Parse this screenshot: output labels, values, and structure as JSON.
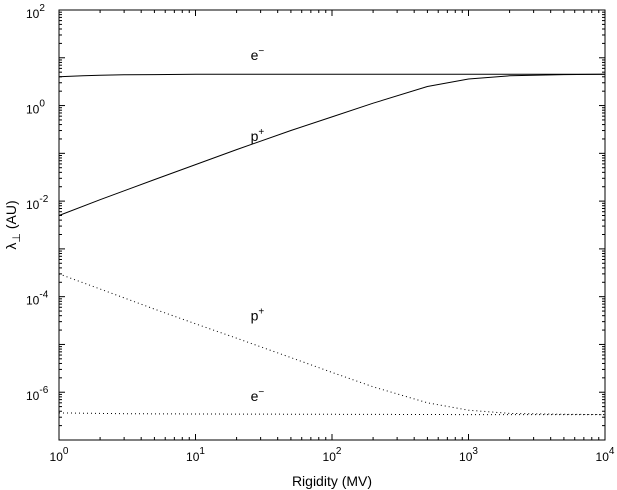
{
  "chart_data": {
    "type": "line",
    "title": "",
    "xlabel": "Rigidity (MV)",
    "ylabel_main": "λ",
    "ylabel_sub": "⊥",
    "ylabel_rest": " (AU)",
    "xscale": "log",
    "yscale": "log",
    "xlim": [
      1,
      10000
    ],
    "ylim": [
      1e-07,
      100
    ],
    "grid": false,
    "legend": "none",
    "x_ticks": [
      {
        "value": 1,
        "base": "10",
        "exp": "0"
      },
      {
        "value": 10,
        "base": "10",
        "exp": "1"
      },
      {
        "value": 100,
        "base": "10",
        "exp": "2"
      },
      {
        "value": 1000,
        "base": "10",
        "exp": "3"
      },
      {
        "value": 10000,
        "base": "10",
        "exp": "4"
      }
    ],
    "y_ticks": [
      {
        "value": 1e-06,
        "base": "10",
        "exp": "-6"
      },
      {
        "value": 0.0001,
        "base": "10",
        "exp": "-4"
      },
      {
        "value": 0.01,
        "base": "10",
        "exp": "-2"
      },
      {
        "value": 1,
        "base": "10",
        "exp": "0"
      },
      {
        "value": 100,
        "base": "10",
        "exp": "2"
      }
    ],
    "series": [
      {
        "style": "solid",
        "x": [
          1,
          1.5,
          2,
          3,
          5,
          10,
          30,
          100,
          1000,
          10000
        ],
        "y": [
          4.0,
          4.2,
          4.3,
          4.4,
          4.45,
          4.5,
          4.5,
          4.5,
          4.5,
          4.5
        ]
      },
      {
        "style": "solid",
        "x": [
          1,
          2,
          5,
          10,
          20,
          50,
          100,
          200,
          500,
          1000,
          2000,
          5000,
          10000
        ],
        "y": [
          0.005,
          0.0107,
          0.0282,
          0.058,
          0.12,
          0.3,
          0.58,
          1.12,
          2.5,
          3.6,
          4.2,
          4.45,
          4.5
        ]
      },
      {
        "style": "dotted",
        "x": [
          1,
          2,
          5,
          10,
          20,
          50,
          100,
          200,
          500,
          1000,
          2000,
          5000,
          10000
        ],
        "y": [
          0.0003,
          0.000145,
          5.5e-05,
          2.7e-05,
          1.35e-05,
          5.3e-06,
          2.6e-06,
          1.3e-06,
          6e-07,
          4.2e-07,
          3.6e-07,
          3.45e-07,
          3.4e-07
        ]
      },
      {
        "style": "dotted",
        "x": [
          1,
          3,
          10,
          100,
          1000,
          10000
        ],
        "y": [
          3.7e-07,
          3.55e-07,
          3.5e-07,
          3.45e-07,
          3.4e-07,
          3.4e-07
        ]
      }
    ],
    "annotations": [
      {
        "base": "e",
        "sup": "−",
        "x": 30,
        "y": 9
      },
      {
        "base": "p",
        "sup": "+",
        "x": 30,
        "y": 0.18
      },
      {
        "base": "p",
        "sup": "+",
        "x": 30,
        "y": 3.2e-05
      },
      {
        "base": "e",
        "sup": "−",
        "x": 30,
        "y": 6.5e-07
      }
    ]
  }
}
